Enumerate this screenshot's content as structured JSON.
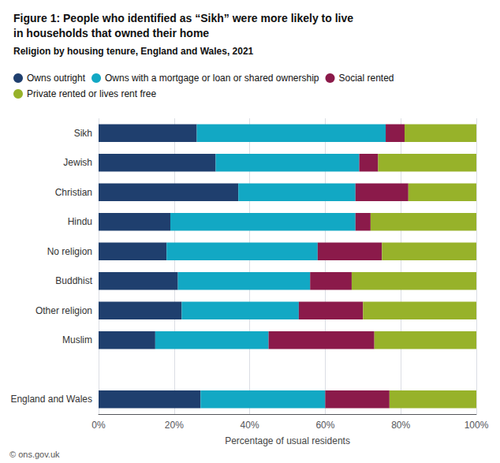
{
  "chart_data": {
    "type": "bar",
    "orientation": "horizontal",
    "stacked": true,
    "title": "Figure 1: People who identified as “Sikh” were more likely to live\nin households that owned their home",
    "subtitle": "Religion by housing tenure, England and Wales, 2021",
    "xlabel": "Percentage of usual residents",
    "annotations": [
      "© ons.gov.uk"
    ],
    "categories": [
      "Sikh",
      "Jewish",
      "Christian",
      "Hindu",
      "No religion",
      "Buddhist",
      "Other religion",
      "Muslim",
      null,
      "England and Wales"
    ],
    "series": [
      {
        "name": "Owns outright",
        "color": "#1f3f6e",
        "values": [
          26,
          31,
          37,
          19,
          18,
          21,
          22,
          15,
          0,
          27
        ]
      },
      {
        "name": "Owns with a mortgage or loan or shared ownership",
        "color": "#12a8c4",
        "values": [
          50,
          38,
          31,
          49,
          40,
          35,
          31,
          30,
          0,
          33
        ]
      },
      {
        "name": "Social rented",
        "color": "#8b1a4a",
        "values": [
          5,
          5,
          14,
          4,
          17,
          11,
          17,
          28,
          0,
          17
        ]
      },
      {
        "name": "Private rented or lives rent free",
        "color": "#97b22a",
        "values": [
          19,
          26,
          18,
          28,
          25,
          33,
          30,
          27,
          0,
          23
        ]
      }
    ],
    "xlim": [
      0,
      100
    ],
    "xticks": [
      {
        "value": 0,
        "label": "0%"
      },
      {
        "value": 20,
        "label": "20%"
      },
      {
        "value": 40,
        "label": "40%"
      },
      {
        "value": 60,
        "label": "60%"
      },
      {
        "value": 80,
        "label": "80%"
      },
      {
        "value": 100,
        "label": "100%"
      }
    ],
    "grid": true,
    "legend": "top left"
  }
}
